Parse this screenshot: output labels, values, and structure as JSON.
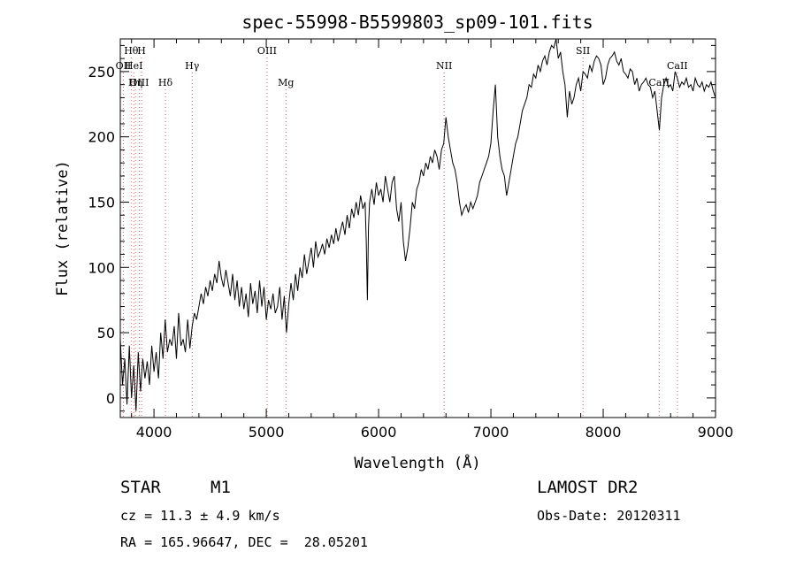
{
  "chart_data": {
    "type": "line",
    "title": "spec-55998-B5599803_sp09-101.fits",
    "xlabel": "Wavelength (Å)",
    "ylabel": "Flux (relative)",
    "xlim": [
      3700,
      9000
    ],
    "ylim": [
      -15,
      275
    ],
    "x_ticks": [
      4000,
      5000,
      6000,
      7000,
      8000,
      9000
    ],
    "y_ticks": [
      0,
      50,
      100,
      150,
      200,
      250
    ],
    "grid": false,
    "line_color": "#000000",
    "marker_color": "#e06060",
    "series": [
      {
        "x": [
          3700,
          3720,
          3740,
          3760,
          3780,
          3800,
          3820,
          3840,
          3860,
          3880,
          3900,
          3920,
          3940,
          3960,
          3980,
          4000,
          4020,
          4040,
          4060,
          4080,
          4100,
          4120,
          4140,
          4160,
          4180,
          4200,
          4220,
          4240,
          4260,
          4280,
          4300,
          4320,
          4340,
          4360,
          4380,
          4400,
          4420,
          4440,
          4460,
          4480,
          4500,
          4520,
          4540,
          4560,
          4580,
          4600,
          4620,
          4640,
          4660,
          4680,
          4700,
          4720,
          4740,
          4760,
          4780,
          4800,
          4820,
          4840,
          4860,
          4880,
          4900,
          4920,
          4940,
          4960,
          4980,
          5000,
          5020,
          5040,
          5060,
          5080,
          5100,
          5120,
          5140,
          5160,
          5180,
          5200,
          5220,
          5240,
          5260,
          5280,
          5300,
          5320,
          5340,
          5360,
          5380,
          5400,
          5420,
          5440,
          5460,
          5480,
          5500,
          5520,
          5540,
          5560,
          5580,
          5600,
          5620,
          5640,
          5660,
          5680,
          5700,
          5720,
          5740,
          5760,
          5780,
          5800,
          5820,
          5840,
          5860,
          5880,
          5890,
          5900,
          5910,
          5920,
          5940,
          5960,
          5980,
          6000,
          6020,
          6040,
          6060,
          6080,
          6100,
          6120,
          6140,
          6160,
          6180,
          6200,
          6220,
          6240,
          6260,
          6280,
          6300,
          6320,
          6340,
          6360,
          6380,
          6400,
          6420,
          6440,
          6460,
          6480,
          6500,
          6520,
          6540,
          6560,
          6580,
          6600,
          6620,
          6640,
          6660,
          6680,
          6700,
          6720,
          6740,
          6760,
          6780,
          6800,
          6820,
          6840,
          6860,
          6880,
          6900,
          6920,
          6940,
          6960,
          6980,
          7000,
          7020,
          7040,
          7060,
          7080,
          7100,
          7120,
          7140,
          7160,
          7180,
          7200,
          7220,
          7240,
          7260,
          7280,
          7300,
          7320,
          7340,
          7360,
          7380,
          7400,
          7420,
          7440,
          7460,
          7480,
          7500,
          7520,
          7540,
          7560,
          7580,
          7600,
          7620,
          7640,
          7660,
          7680,
          7700,
          7720,
          7740,
          7760,
          7780,
          7800,
          7820,
          7840,
          7860,
          7880,
          7900,
          7920,
          7940,
          7960,
          7980,
          8000,
          8020,
          8040,
          8060,
          8080,
          8100,
          8120,
          8140,
          8160,
          8180,
          8200,
          8220,
          8240,
          8260,
          8280,
          8300,
          8320,
          8340,
          8360,
          8380,
          8400,
          8420,
          8440,
          8460,
          8480,
          8500,
          8520,
          8540,
          8560,
          8580,
          8600,
          8620,
          8640,
          8660,
          8680,
          8700,
          8720,
          8740,
          8760,
          8780,
          8800,
          8820,
          8840,
          8860,
          8880,
          8900,
          8920,
          8940,
          8960,
          8980,
          9000
        ],
        "y": [
          45,
          10,
          30,
          -5,
          40,
          0,
          25,
          -10,
          35,
          5,
          30,
          15,
          28,
          10,
          40,
          20,
          35,
          15,
          50,
          30,
          60,
          35,
          45,
          40,
          55,
          30,
          65,
          40,
          45,
          35,
          60,
          38,
          55,
          65,
          60,
          70,
          80,
          72,
          85,
          78,
          90,
          82,
          95,
          88,
          105,
          92,
          85,
          98,
          88,
          78,
          95,
          75,
          90,
          70,
          85,
          68,
          80,
          62,
          88,
          72,
          82,
          65,
          90,
          70,
          85,
          60,
          75,
          68,
          80,
          65,
          70,
          85,
          60,
          78,
          50,
          72,
          88,
          75,
          95,
          82,
          100,
          92,
          110,
          95,
          105,
          115,
          100,
          120,
          108,
          112,
          118,
          110,
          122,
          115,
          125,
          118,
          130,
          120,
          128,
          135,
          125,
          140,
          130,
          145,
          138,
          150,
          140,
          155,
          145,
          150,
          120,
          75,
          130,
          150,
          160,
          148,
          165,
          155,
          160,
          150,
          170,
          160,
          150,
          165,
          170,
          145,
          135,
          150,
          120,
          105,
          115,
          130,
          150,
          145,
          160,
          165,
          175,
          170,
          180,
          175,
          185,
          180,
          190,
          185,
          175,
          190,
          195,
          215,
          200,
          190,
          180,
          175,
          165,
          150,
          140,
          145,
          148,
          142,
          150,
          145,
          150,
          155,
          165,
          170,
          175,
          180,
          185,
          195,
          220,
          240,
          200,
          185,
          175,
          170,
          155,
          165,
          175,
          185,
          195,
          200,
          210,
          220,
          225,
          230,
          240,
          238,
          248,
          245,
          255,
          250,
          258,
          262,
          255,
          265,
          270,
          268,
          275,
          260,
          265,
          250,
          240,
          215,
          235,
          225,
          230,
          240,
          245,
          235,
          250,
          248,
          245,
          255,
          250,
          258,
          262,
          260,
          255,
          240,
          245,
          255,
          260,
          262,
          265,
          258,
          255,
          260,
          250,
          248,
          245,
          252,
          250,
          240,
          245,
          235,
          240,
          242,
          245,
          240,
          238,
          230,
          235,
          220,
          205,
          230,
          240,
          245,
          238,
          240,
          235,
          250,
          245,
          238,
          242,
          240,
          245,
          238,
          240,
          235,
          245,
          240,
          238,
          242,
          235,
          240,
          238,
          242,
          235,
          230
        ]
      }
    ],
    "lines": [
      {
        "label": "Hθ",
        "x": 3797,
        "row": 0
      },
      {
        "label": "H",
        "x": 3889,
        "row": 0
      },
      {
        "label": "OII",
        "x": 3727,
        "row": 1
      },
      {
        "label": "HeI",
        "x": 3820,
        "row": 1
      },
      {
        "label": "Hγ",
        "x": 4340,
        "row": 1
      },
      {
        "label": "OIII",
        "x": 3869,
        "row": 2
      },
      {
        "label": "Hη",
        "x": 3835,
        "row": 2
      },
      {
        "label": "Hδ",
        "x": 4102,
        "row": 2
      },
      {
        "label": "OIII",
        "x": 5007,
        "row": 0
      },
      {
        "label": "Mg",
        "x": 5175,
        "row": 2
      },
      {
        "label": "NII",
        "x": 6584,
        "row": 1
      },
      {
        "label": "SII",
        "x": 7820,
        "row": 0
      },
      {
        "label": "CaII",
        "x": 8660,
        "row": 1
      },
      {
        "label": "CaII",
        "x": 8498,
        "row": 2
      }
    ]
  },
  "info": {
    "object_type": "STAR",
    "object_class": "M1",
    "survey": "LAMOST DR2",
    "cz": "cz = 11.3 ± 4.9 km/s",
    "obs_date": "Obs-Date: 20120311",
    "radec": "RA = 165.96647, DEC =  28.05201"
  }
}
